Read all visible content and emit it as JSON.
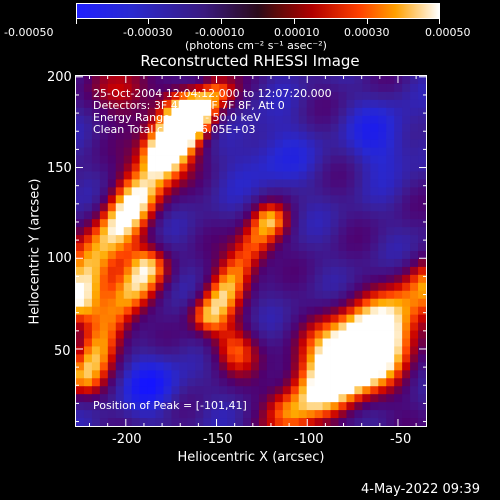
{
  "colorbar": {
    "ticks": [
      "-0.00050",
      "-0.00030",
      "-0.00010",
      "0.00010",
      "0.00030",
      "0.00050"
    ],
    "units": "(photons cm⁻² s⁻¹ asec⁻²)"
  },
  "chart_data": {
    "type": "heatmap",
    "title": "Reconstructed RHESSI Image",
    "xlabel": "Heliocentric X (arcsec)",
    "ylabel": "Heliocentric Y (arcsec)",
    "xlim": [
      -228,
      -34
    ],
    "ylim": [
      7,
      201
    ],
    "xticks": [
      "-200",
      "-150",
      "-100",
      "-50"
    ],
    "yticks": [
      "50",
      "100",
      "150",
      "200"
    ],
    "clim": [
      -0.0005,
      0.0005
    ],
    "annotations": [
      "25-Oct-2004 12:04:12.000 to 12:07:20.000",
      "Detectors: 3F 4F 5F 6F 7F 8F, Att 0",
      "Energy Range: 25.0 - 50.0 keV",
      "Clean    Total counts: 6.05E+03"
    ],
    "peak_label": "Position of Peak = [-101,41]"
  },
  "footer": {
    "timestamp": "4-May-2022 09:39"
  }
}
